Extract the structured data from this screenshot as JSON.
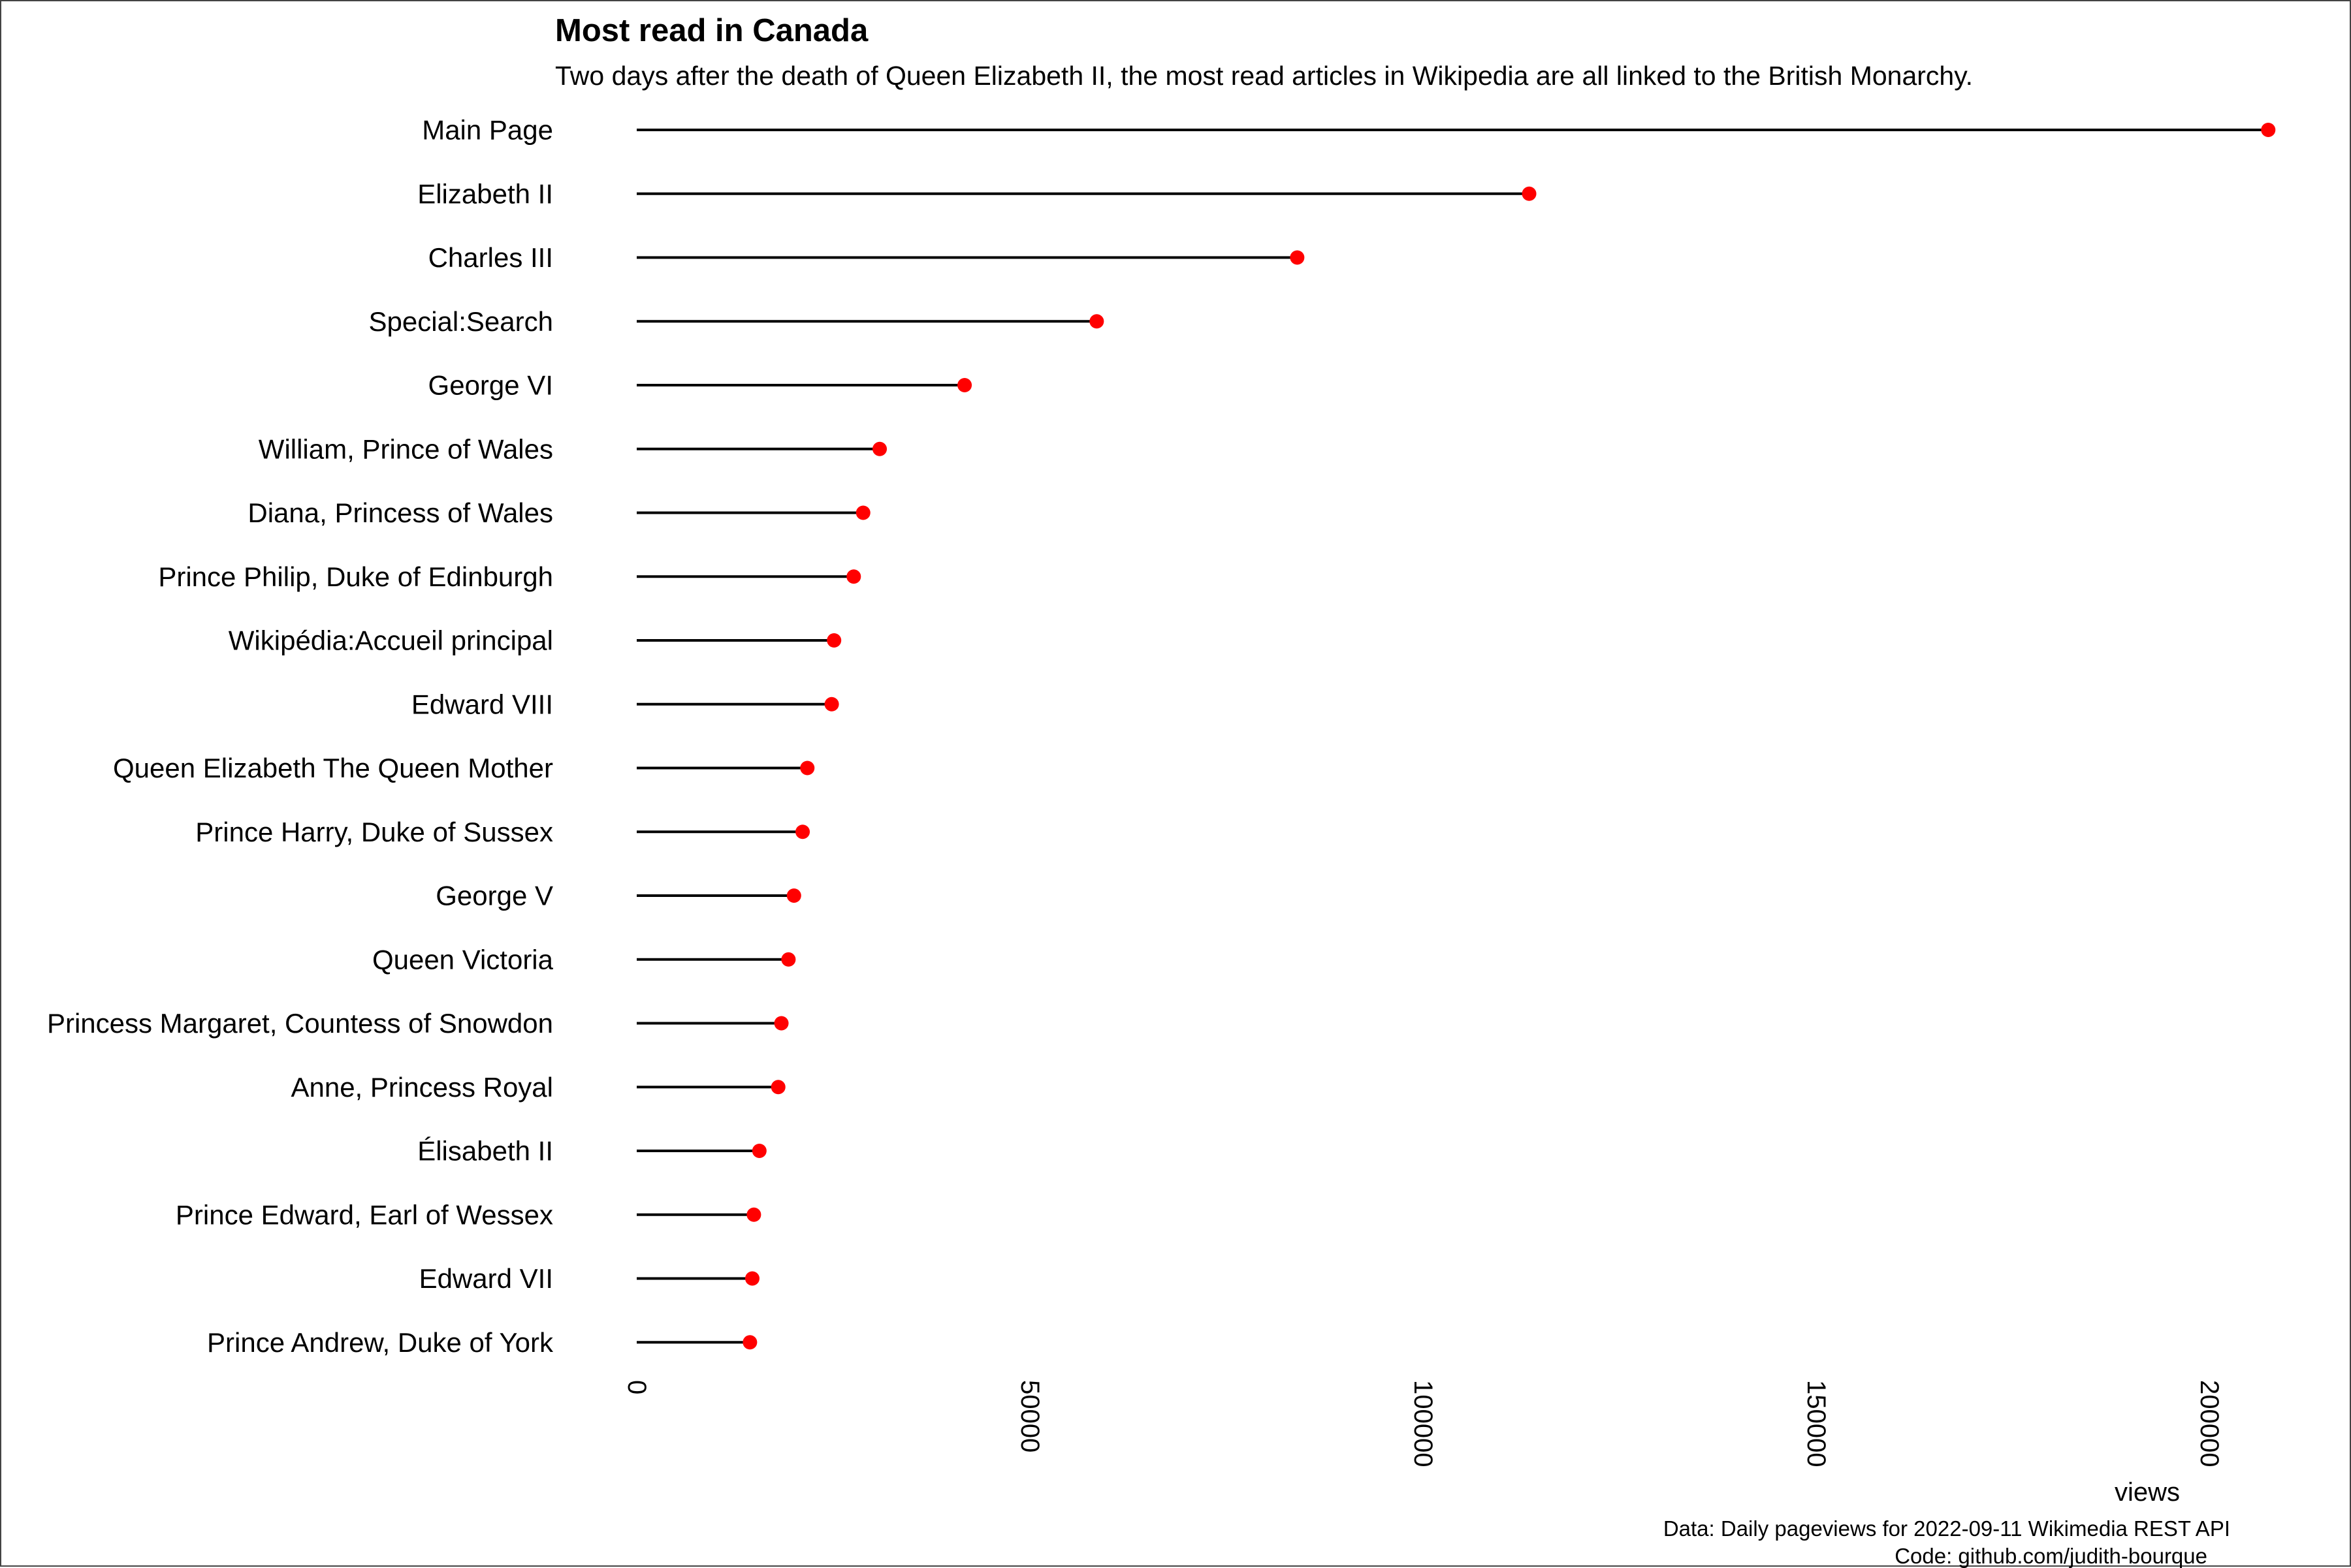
{
  "chart_data": {
    "type": "lollipop",
    "title": "Most read in Canada",
    "subtitle": "Two days after the death of Queen Elizabeth II, the most read articles in Wikipedia are all linked to the British Monarchy.",
    "xlabel": "views",
    "ylabel": "",
    "xlim": [
      0,
      210000
    ],
    "xticks": [
      0,
      50000,
      100000,
      150000,
      200000
    ],
    "xtick_labels": [
      "0",
      "50000",
      "100000",
      "150000",
      "200000"
    ],
    "grid": false,
    "legend": "none",
    "caption": [
      "Data: Daily pageviews for 2022-09-11 Wikimedia REST API",
      "Code: github.com/judith-bourque"
    ],
    "colors": {
      "point": "#ff0000",
      "segment": "#000000",
      "text": "#000000",
      "background": "#ffffff"
    },
    "categories": [
      "Main Page",
      "Elizabeth II",
      "Charles III",
      "Special:Search",
      "George VI",
      "William, Prince of Wales",
      "Diana, Princess of Wales",
      "Prince Philip, Duke of Edinburgh",
      "Wikipédia:Accueil principal",
      "Edward VIII",
      "Queen Elizabeth The Queen Mother",
      "Prince Harry, Duke of Sussex",
      "George V",
      "Queen Victoria",
      "Princess Margaret, Countess of Snowdon",
      "Anne, Princess Royal",
      "Élisabeth II",
      "Prince Edward, Earl of Wessex",
      "Edward VII",
      "Prince Andrew, Duke of York"
    ],
    "values": [
      207500,
      113500,
      84000,
      58500,
      41700,
      30900,
      28800,
      27600,
      25100,
      24800,
      21700,
      21100,
      20000,
      19300,
      18400,
      18000,
      15600,
      14900,
      14700,
      14400
    ]
  }
}
